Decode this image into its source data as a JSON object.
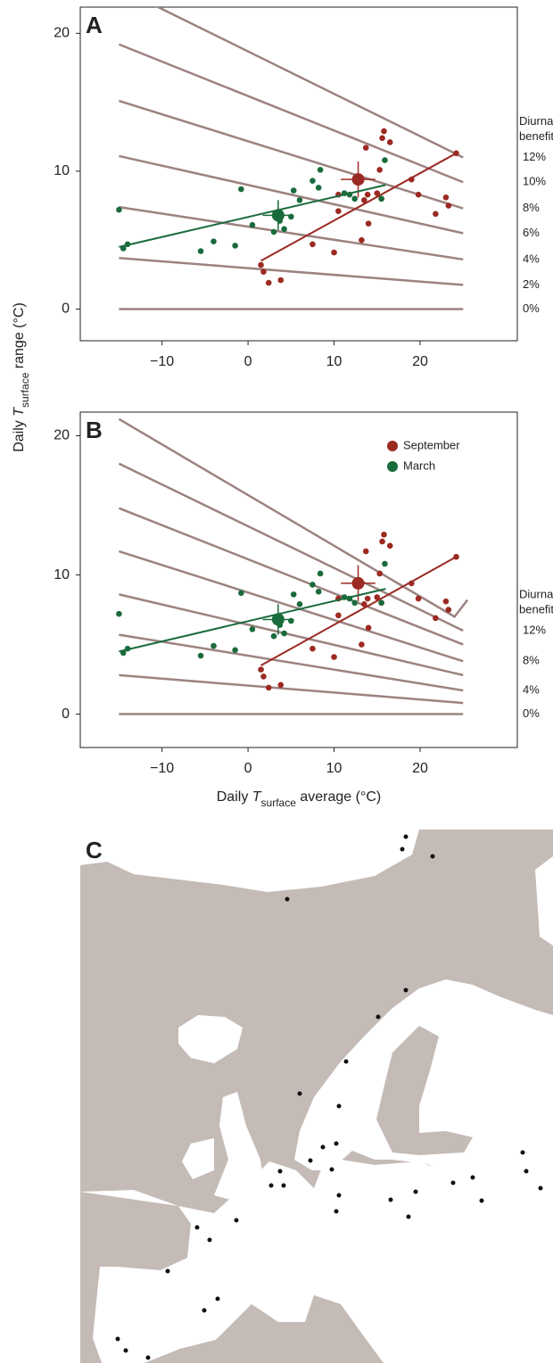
{
  "chart_data": [
    {
      "type": "scatter",
      "panel": "A",
      "ylabel": [
        "Daily ",
        "T",
        "surface",
        " range (°C)"
      ],
      "xlim": [
        -19.5,
        31.3
      ],
      "ylim": [
        -2.3,
        21.9
      ],
      "xticks": [
        {
          "value": -10,
          "label": "−10"
        },
        0,
        10,
        20
      ],
      "yticks": [
        0,
        10,
        20
      ],
      "annotation": [
        "Diurnal",
        "benefit"
      ],
      "isoline_color": "#9c8380",
      "isolines": [
        {
          "name": "0%",
          "x": [
            -15,
            25
          ],
          "y": [
            0,
            0
          ]
        },
        {
          "name": "2%",
          "x": [
            -15,
            25
          ],
          "y": [
            3.7,
            1.75
          ]
        },
        {
          "name": "4%",
          "x": [
            -15,
            25
          ],
          "y": [
            7.4,
            3.6
          ]
        },
        {
          "name": "6%",
          "x": [
            -15,
            25
          ],
          "y": [
            11.1,
            5.5
          ]
        },
        {
          "name": "8%",
          "x": [
            -15,
            25
          ],
          "y": [
            15.1,
            7.3
          ]
        },
        {
          "name": "10%",
          "x": [
            -15,
            25
          ],
          "y": [
            19.2,
            9.2
          ]
        },
        {
          "name": "12%",
          "x": [
            -15,
            25
          ],
          "y": [
            23.3,
            11.0
          ]
        }
      ],
      "series": [
        {
          "name": "September",
          "color": "#9b2a22",
          "x": [
            1.5,
            1.8,
            2.4,
            3.8,
            7.5,
            10,
            10.5,
            10.5,
            13.2,
            13.5,
            13.7,
            13.9,
            14,
            15,
            15.3,
            15.5,
            15.6,
            15.8,
            16.5,
            19,
            19.8,
            21.8,
            23,
            23.3,
            24.2
          ],
          "values": [
            3.2,
            2.7,
            1.9,
            2.1,
            4.7,
            4.1,
            7.1,
            8.3,
            5.0,
            7.9,
            11.7,
            8.3,
            6.2,
            8.4,
            10.1,
            8.0,
            12.4,
            12.9,
            12.1,
            9.4,
            8.3,
            6.9,
            8.1,
            7.5,
            11.3
          ],
          "mean": {
            "x": 12.8,
            "y": 9.4,
            "xerr": 2.0,
            "yerr": 1.3
          },
          "fit": {
            "x": [
              1.5,
              24.2
            ],
            "y": [
              3.5,
              11.3
            ]
          }
        },
        {
          "name": "March",
          "color": "#1a6b3c",
          "x": [
            -15,
            -14.5,
            -14,
            -5.5,
            -4,
            -1.5,
            -0.8,
            0.5,
            3,
            3.7,
            4.2,
            5,
            5.3,
            6,
            7.5,
            8.2,
            8.4,
            11.2,
            11.8,
            12.4,
            15.5,
            15.9
          ],
          "values": [
            7.2,
            4.4,
            4.7,
            4.2,
            4.9,
            4.6,
            8.7,
            6.1,
            5.6,
            6.4,
            5.8,
            6.7,
            8.6,
            7.9,
            9.3,
            8.8,
            10.1,
            8.4,
            8.3,
            8.0,
            8.0,
            10.8
          ],
          "mean": {
            "x": 3.5,
            "y": 6.8,
            "xerr": 1.8,
            "yerr": 1.1
          },
          "fit": {
            "x": [
              -15,
              16
            ],
            "y": [
              4.5,
              9.0
            ]
          }
        }
      ]
    },
    {
      "type": "scatter",
      "panel": "B",
      "xlabel": [
        "Daily ",
        "T",
        "surface",
        " average (°C)"
      ],
      "xlim": [
        -19.5,
        31.3
      ],
      "ylim": [
        -2.4,
        21.7
      ],
      "xticks": [
        {
          "value": -10,
          "label": "−10"
        },
        0,
        10,
        20
      ],
      "yticks": [
        0,
        10,
        20
      ],
      "annotation": [
        "Diurnal",
        "benefit"
      ],
      "legend": "upper right",
      "isoline_color": "#9c8380",
      "isolines": [
        {
          "name": "0%",
          "x": [
            -15,
            25
          ],
          "y": [
            0,
            0
          ]
        },
        {
          "name": null,
          "x": [
            -15,
            25
          ],
          "y": [
            2.8,
            0.8
          ]
        },
        {
          "name": "4%",
          "x": [
            -15,
            25
          ],
          "y": [
            5.7,
            1.7
          ]
        },
        {
          "name": null,
          "x": [
            -15,
            25
          ],
          "y": [
            8.6,
            2.8
          ]
        },
        {
          "name": "8%",
          "x": [
            -15,
            25
          ],
          "y": [
            11.7,
            3.8
          ]
        },
        {
          "name": null,
          "x": [
            -15,
            25
          ],
          "y": [
            14.8,
            5.0
          ]
        },
        {
          "name": "12%",
          "x": [
            -15,
            25
          ],
          "y": [
            18.0,
            6.0
          ]
        },
        {
          "name": null,
          "x": [
            -15,
            24,
            25.5
          ],
          "y": [
            21.2,
            7.0,
            8.2
          ]
        }
      ],
      "series": [
        {
          "name": "September",
          "color": "#9b2a22",
          "x": [
            1.5,
            1.8,
            2.4,
            3.8,
            7.5,
            10,
            10.5,
            10.5,
            13.2,
            13.5,
            13.7,
            13.9,
            14,
            15,
            15.3,
            15.5,
            15.6,
            15.8,
            16.5,
            19,
            19.8,
            21.8,
            23,
            23.3,
            24.2
          ],
          "values": [
            3.2,
            2.7,
            1.9,
            2.1,
            4.7,
            4.1,
            7.1,
            8.3,
            5.0,
            7.9,
            11.7,
            8.3,
            6.2,
            8.4,
            10.1,
            8.0,
            12.4,
            12.9,
            12.1,
            9.4,
            8.3,
            6.9,
            8.1,
            7.5,
            11.3
          ],
          "mean": {
            "x": 12.8,
            "y": 9.4,
            "xerr": 2.0,
            "yerr": 1.3
          },
          "fit": {
            "x": [
              1.5,
              24.2
            ],
            "y": [
              3.5,
              11.3
            ]
          }
        },
        {
          "name": "March",
          "color": "#1a6b3c",
          "x": [
            -15,
            -14.5,
            -14,
            -5.5,
            -4,
            -1.5,
            -0.8,
            0.5,
            3,
            3.7,
            4.2,
            5,
            5.3,
            6,
            7.5,
            8.2,
            8.4,
            11.2,
            11.8,
            12.4,
            15.5,
            15.9
          ],
          "values": [
            7.2,
            4.4,
            4.7,
            4.2,
            4.9,
            4.6,
            8.7,
            6.1,
            5.6,
            6.4,
            5.8,
            6.7,
            8.6,
            7.9,
            9.3,
            8.8,
            10.1,
            8.4,
            8.3,
            8.0,
            8.0,
            10.8
          ],
          "mean": {
            "x": 3.5,
            "y": 6.8,
            "xerr": 1.8,
            "yerr": 1.1
          },
          "fit": {
            "x": [
              -15,
              16
            ],
            "y": [
              4.5,
              9.0
            ]
          }
        }
      ]
    }
  ],
  "map": {
    "panel": "C"
  }
}
